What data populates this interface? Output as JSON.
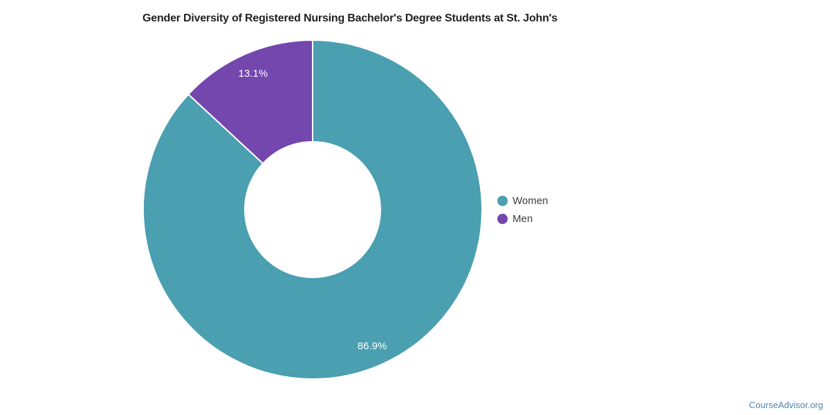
{
  "chart_data": {
    "type": "pie",
    "subtype": "donut",
    "title": "Gender Diversity of Registered Nursing Bachelor's Degree Students at St. John's",
    "categories": [
      "Women",
      "Men"
    ],
    "values": [
      86.9,
      13.1
    ],
    "slice_labels": [
      "86.9%",
      "13.1%"
    ],
    "colors": [
      "#4a9fb0",
      "#7347ae"
    ],
    "start_angle_deg": 0,
    "direction": "clockwise",
    "inner_radius_ratio": 0.4,
    "legend_position": "right",
    "slice_label_color": "#ffffff",
    "slice_border_color": "#ffffff"
  },
  "footer": {
    "source_label": "CourseAdvisor.org",
    "source_color": "#4f86ad"
  }
}
